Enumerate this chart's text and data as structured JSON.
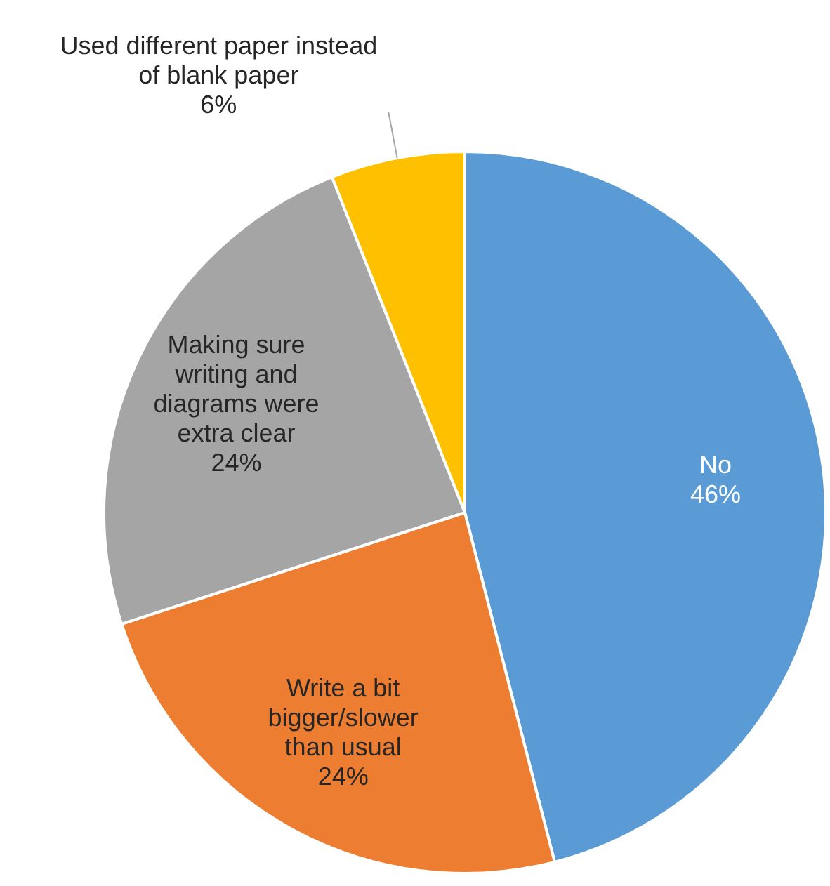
{
  "chart_data": {
    "type": "pie",
    "categories": [
      "No",
      "Write a bit bigger/slower than usual",
      "Making sure writing and diagrams were extra clear",
      "Used different paper instead of blank paper"
    ],
    "values": [
      46,
      24,
      24,
      6
    ],
    "colors": [
      "#5b9bd5",
      "#ed7d31",
      "#a5a5a5",
      "#ffc000"
    ],
    "value_labels": [
      "46%",
      "24%",
      "24%",
      "6%"
    ],
    "legend": false
  }
}
